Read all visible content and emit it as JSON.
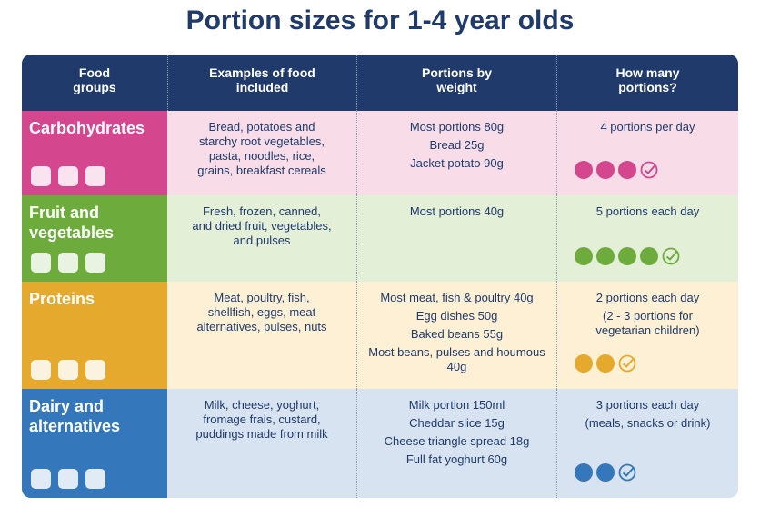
{
  "title": "Portion sizes for 1-4 year olds",
  "table": {
    "headers": [
      "Food groups",
      "Examples of food included",
      "Portions by weight",
      "How many portions?"
    ],
    "rows": [
      {
        "group": "Carbohydrates",
        "examples": "Bread, potatoes and starchy root vegetables, pasta, noodles, rice, grains, breakfast cereals",
        "portions": [
          "Most portions 80g",
          "Bread 25g",
          "Jacket potato 90g"
        ],
        "how_many": [
          "4 portions per day"
        ],
        "icons": 4,
        "color": "#d4468e"
      },
      {
        "group": "Fruit and vegetables",
        "examples": "Fresh, frozen, canned, and dried fruit, vegetables, and pulses",
        "portions": [
          "Most portions 40g"
        ],
        "how_many": [
          "5 portions each day"
        ],
        "icons": 5,
        "color": "#6dac3c"
      },
      {
        "group": "Proteins",
        "examples": "Meat, poultry, fish, shellfish, eggs, meat alternatives, pulses, nuts",
        "portions": [
          "Most meat, fish & poultry 40g",
          "Egg dishes 50g",
          "Baked beans 55g",
          "Most beans, pulses and houmous 40g"
        ],
        "how_many": [
          "2 portions each day",
          "(2 - 3 portions for vegetarian children)"
        ],
        "icons": 3,
        "color": "#e5a92e"
      },
      {
        "group": "Dairy and alternatives",
        "examples": "Milk, cheese, yoghurt, fromage frais, custard, puddings made from milk",
        "portions": [
          "Milk portion 150ml",
          "Cheddar slice 15g",
          "Cheese triangle spread 18g",
          "Full fat yoghurt 60g"
        ],
        "how_many": [
          "3 portions each day",
          "(meals, snacks or drink)"
        ],
        "icons": 3,
        "color": "#3577bb"
      }
    ]
  }
}
